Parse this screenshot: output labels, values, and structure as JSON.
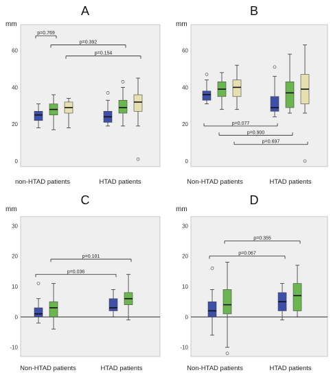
{
  "colors": {
    "plot_bg": "#efefef",
    "box_blue": "#3d4fa8",
    "box_green": "#6bb64f",
    "box_tan": "#e6dfb0",
    "whisker": "#333333"
  },
  "chart_data": [
    {
      "type": "boxplot",
      "title": "A",
      "ylabel": "mm",
      "ylim": [
        -3,
        74
      ],
      "yticks": [
        0,
        20,
        40,
        60
      ],
      "zero_line": false,
      "categories": [
        "non-HTAD patients",
        "HTAD patients"
      ],
      "series": [
        {
          "color": "blue",
          "boxes": [
            {
              "min": 18,
              "q1": 22,
              "median": 25,
              "q3": 27,
              "max": 31,
              "outliers": []
            },
            {
              "min": 19,
              "q1": 21,
              "median": 24,
              "q3": 27,
              "max": 33,
              "outliers": [
                37
              ]
            }
          ]
        },
        {
          "color": "green",
          "boxes": [
            {
              "min": 17,
              "q1": 25,
              "median": 28,
              "q3": 31,
              "max": 36,
              "outliers": []
            },
            {
              "min": 19,
              "q1": 26,
              "median": 29,
              "q3": 33,
              "max": 40,
              "outliers": [
                43
              ]
            }
          ]
        },
        {
          "color": "tan",
          "boxes": [
            {
              "min": 18,
              "q1": 26,
              "median": 29,
              "q3": 32,
              "max": 34,
              "outliers": []
            },
            {
              "min": 19,
              "q1": 27,
              "median": 32,
              "q3": 36,
              "max": 45,
              "outliers": [
                1
              ]
            }
          ]
        }
      ],
      "annotations": [
        {
          "text": "p=0.769",
          "y": 68
        },
        {
          "text": "p=0.392",
          "y": 63
        },
        {
          "text": "p=0.154",
          "y": 57
        }
      ]
    },
    {
      "type": "boxplot",
      "title": "B",
      "ylabel": "mm",
      "ylim": [
        -3,
        74
      ],
      "yticks": [
        0,
        20,
        40,
        60
      ],
      "zero_line": false,
      "categories": [
        "Non-HTAD patients",
        "HTAD patients"
      ],
      "series": [
        {
          "color": "blue",
          "boxes": [
            {
              "min": 31,
              "q1": 33,
              "median": 36,
              "q3": 38,
              "max": 44,
              "outliers": [
                47
              ]
            },
            {
              "min": 24,
              "q1": 27,
              "median": 29,
              "q3": 35,
              "max": 46,
              "outliers": [
                51
              ]
            }
          ]
        },
        {
          "color": "green",
          "boxes": [
            {
              "min": 28,
              "q1": 35,
              "median": 39,
              "q3": 43,
              "max": 48,
              "outliers": []
            },
            {
              "min": 26,
              "q1": 29,
              "median": 37,
              "q3": 43,
              "max": 58,
              "outliers": []
            }
          ]
        },
        {
          "color": "tan",
          "boxes": [
            {
              "min": 28,
              "q1": 35,
              "median": 40,
              "q3": 44,
              "max": 52,
              "outliers": []
            },
            {
              "min": 26,
              "q1": 31,
              "median": 39,
              "q3": 47,
              "max": 63,
              "outliers": [
                0
              ]
            }
          ]
        }
      ],
      "annotations": [
        {
          "text": "p=0.077",
          "y": 19
        },
        {
          "text": "p=0.900",
          "y": 14
        },
        {
          "text": "p=0.697",
          "y": 9
        }
      ]
    },
    {
      "type": "boxplot",
      "title": "C",
      "ylabel": "mm",
      "ylim": [
        -13,
        33
      ],
      "yticks": [
        -10,
        0,
        10,
        20,
        30
      ],
      "zero_line": true,
      "categories": [
        "Non-HTAD patients",
        "HTAD patients"
      ],
      "series": [
        {
          "color": "blue",
          "boxes": [
            {
              "min": -2,
              "q1": 0,
              "median": 1,
              "q3": 3,
              "max": 6,
              "outliers": [
                11
              ]
            },
            {
              "min": 0,
              "q1": 2,
              "median": 3,
              "q3": 6,
              "max": 9,
              "outliers": []
            }
          ]
        },
        {
          "color": "green",
          "boxes": [
            {
              "min": -4,
              "q1": 0,
              "median": 3,
              "q3": 5,
              "max": 11,
              "outliers": []
            },
            {
              "min": -1,
              "q1": 4,
              "median": 6,
              "q3": 8,
              "max": 14,
              "outliers": []
            }
          ]
        }
      ],
      "annotations": [
        {
          "text": "p=0.101",
          "y": 19
        },
        {
          "text": "p=0.036",
          "y": 14
        }
      ]
    },
    {
      "type": "boxplot",
      "title": "D",
      "ylabel": "mm",
      "ylim": [
        -13,
        33
      ],
      "yticks": [
        -10,
        0,
        10,
        20,
        30
      ],
      "zero_line": true,
      "categories": [
        "Non-HTAD patients",
        "HTAD patients"
      ],
      "series": [
        {
          "color": "blue",
          "boxes": [
            {
              "min": -6,
              "q1": 0,
              "median": 2,
              "q3": 5,
              "max": 9,
              "outliers": [
                16
              ]
            },
            {
              "min": -1,
              "q1": 2,
              "median": 5,
              "q3": 8,
              "max": 11,
              "outliers": []
            }
          ]
        },
        {
          "color": "green",
          "boxes": [
            {
              "min": -10,
              "q1": 1,
              "median": 4,
              "q3": 9,
              "max": 18,
              "outliers": [
                -12
              ]
            },
            {
              "min": 0,
              "q1": 2,
              "median": 7,
              "q3": 11,
              "max": 17,
              "outliers": []
            }
          ]
        }
      ],
      "annotations": [
        {
          "text": "p=0.355",
          "y": 25
        },
        {
          "text": "p=0.067",
          "y": 20
        }
      ]
    }
  ]
}
